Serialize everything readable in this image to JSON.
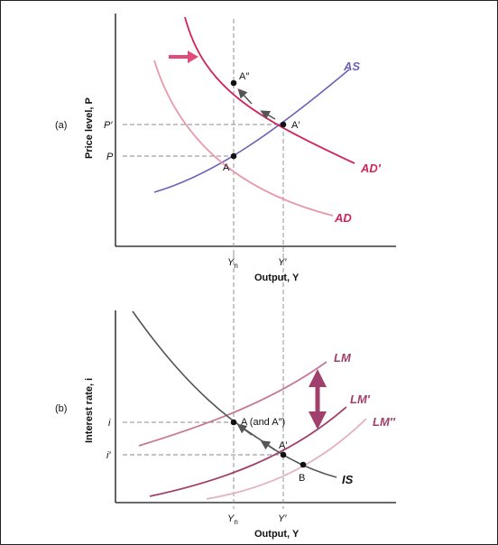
{
  "colors": {
    "as": "#6f5fb8",
    "ad": "#e89aaa",
    "ad_prime": "#d0245a",
    "is": "#555555",
    "lm": "#c67898",
    "lm_prime": "#a1406d",
    "lm_double": "#e3b2c2",
    "arrow_shift": "#e24a79",
    "arrow_lm": "#a1406d",
    "dash": "#888888",
    "point": "#111111",
    "axis": "#111111"
  },
  "panel_a": {
    "panel_label": "(a)",
    "y_axis_label": "Price level, P",
    "x_axis_label": "Output, Y",
    "y_ticks": {
      "p_prime": "P′",
      "p": "P"
    },
    "x_ticks": {
      "yn": "Y",
      "yn_sub": "n",
      "y_prime": "Y′"
    },
    "curves": {
      "as": "AS",
      "ad": "AD",
      "ad_prime": "AD′"
    },
    "points": {
      "a": "A",
      "a_prime": "A′",
      "a_double": "A″"
    }
  },
  "panel_b": {
    "panel_label": "(b)",
    "y_axis_label": "Interest rate, i",
    "x_axis_label": "Output, Y",
    "y_ticks": {
      "i": "i",
      "i_prime": "i′"
    },
    "x_ticks": {
      "yn": "Y",
      "yn_sub": "n",
      "y_prime": "Y′"
    },
    "curves": {
      "lm": "LM",
      "lm_prime": "LM′",
      "lm_double": "LM″",
      "is": "IS"
    },
    "points": {
      "a_and": "A (and A″)",
      "a_prime": "A′",
      "b": "B"
    }
  }
}
